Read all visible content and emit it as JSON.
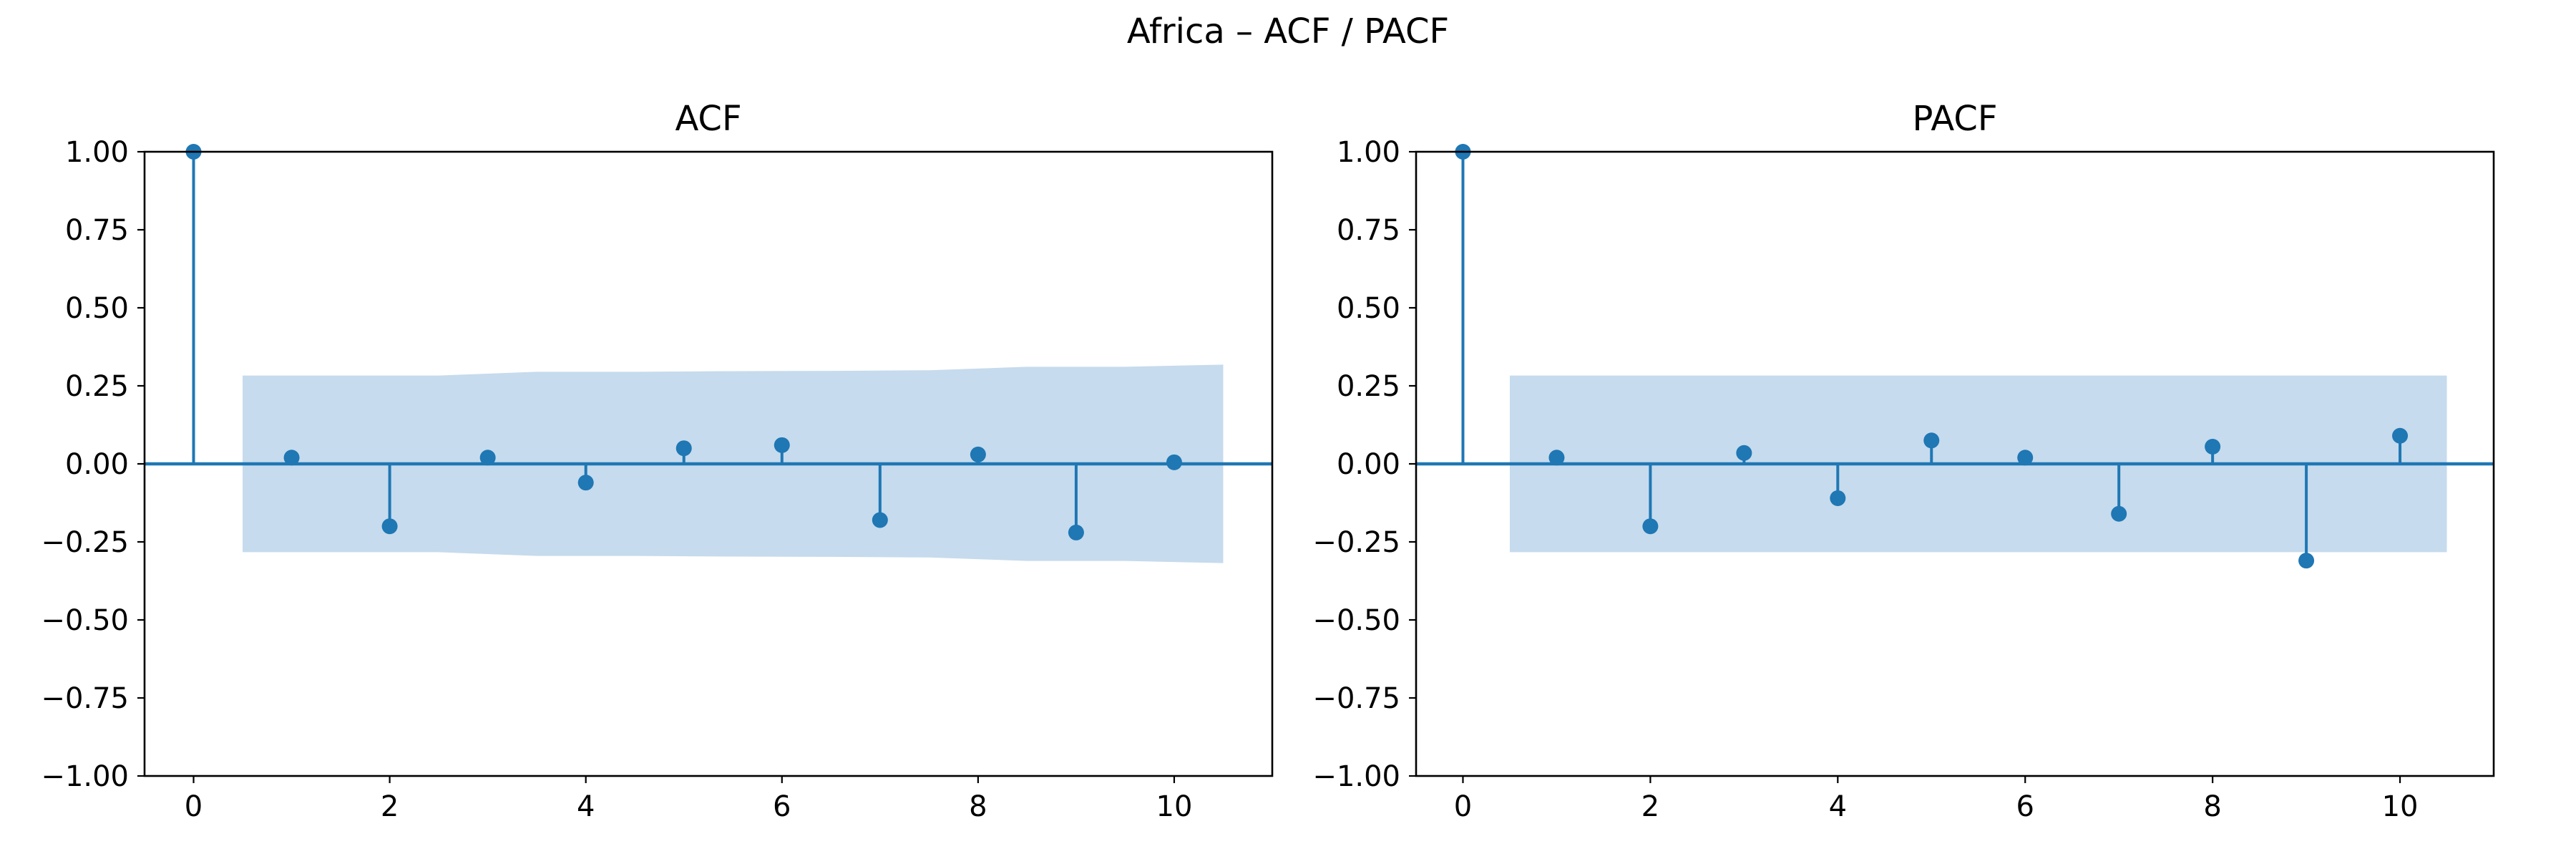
{
  "figure": {
    "title": "Africa – ACF / PACF"
  },
  "style": {
    "stem_color": "#1f77b4",
    "band_color": "#c6dbed"
  },
  "chart_data": [
    {
      "type": "stem",
      "title": "ACF",
      "xlim": [
        -0.5,
        11
      ],
      "ylim": [
        -1.0,
        1.0
      ],
      "xticks": [
        0,
        2,
        4,
        6,
        8,
        10
      ],
      "yticks": [
        1.0,
        0.75,
        0.5,
        0.25,
        0.0,
        -0.25,
        -0.5,
        -0.75,
        -1.0
      ],
      "ytick_labels": [
        "1.00",
        "0.75",
        "0.50",
        "0.25",
        "0.00",
        "−0.25",
        "−0.50",
        "−0.75",
        "−1.00"
      ],
      "x": [
        0,
        1,
        2,
        3,
        4,
        5,
        6,
        7,
        8,
        9,
        10
      ],
      "values": [
        1.0,
        0.02,
        -0.2,
        0.02,
        -0.06,
        0.05,
        0.06,
        -0.18,
        0.03,
        -0.22,
        0.005
      ],
      "confidence_band": {
        "x": [
          0.5,
          1.5,
          2.5,
          3.5,
          4.5,
          5.5,
          6.5,
          7.5,
          8.5,
          9.5,
          10.5
        ],
        "upper": [
          0.283,
          0.283,
          0.283,
          0.295,
          0.295,
          0.297,
          0.298,
          0.3,
          0.311,
          0.311,
          0.318
        ]
      }
    },
    {
      "type": "stem",
      "title": "PACF",
      "xlim": [
        -0.5,
        11
      ],
      "ylim": [
        -1.0,
        1.0
      ],
      "xticks": [
        0,
        2,
        4,
        6,
        8,
        10
      ],
      "yticks": [
        1.0,
        0.75,
        0.5,
        0.25,
        0.0,
        -0.25,
        -0.5,
        -0.75,
        -1.0
      ],
      "ytick_labels": [
        "1.00",
        "0.75",
        "0.50",
        "0.25",
        "0.00",
        "−0.25",
        "−0.50",
        "−0.75",
        "−1.00"
      ],
      "x": [
        0,
        1,
        2,
        3,
        4,
        5,
        6,
        7,
        8,
        9,
        10
      ],
      "values": [
        1.0,
        0.02,
        -0.2,
        0.035,
        -0.11,
        0.075,
        0.02,
        -0.16,
        0.055,
        -0.31,
        0.09
      ],
      "confidence_band": {
        "x": [
          0.5,
          10.5
        ],
        "upper": [
          0.283,
          0.283
        ]
      }
    }
  ]
}
